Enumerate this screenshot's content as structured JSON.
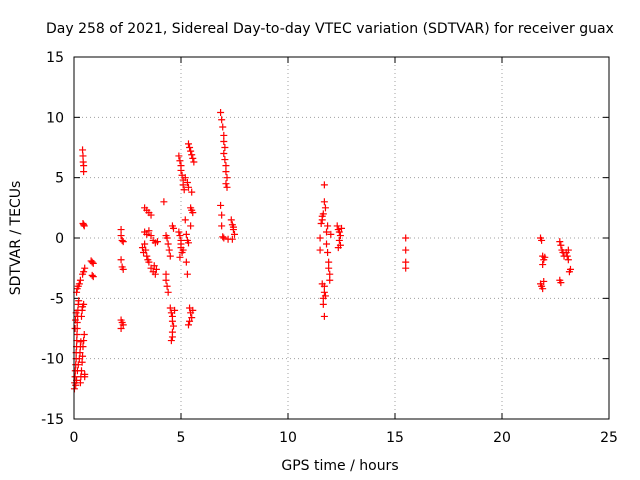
{
  "chart_data": {
    "type": "scatter",
    "title": "Day 258 of 2021, Sidereal Day-to-day VTEC variation (SDTVAR) for receiver guax",
    "xlabel": "GPS time / hours",
    "ylabel": "SDTVAR / TECUs",
    "xlim": [
      0,
      25
    ],
    "ylim": [
      -15,
      15
    ],
    "xticks": [
      0,
      5,
      10,
      15,
      20,
      25
    ],
    "yticks": [
      -15,
      -10,
      -5,
      0,
      5,
      10,
      15
    ],
    "xtick_labels": [
      "0",
      "5",
      "10",
      "15",
      "20",
      "25"
    ],
    "ytick_labels": [
      "-15",
      "-10",
      "-5",
      "0",
      "5",
      "10",
      "15"
    ],
    "grid": true,
    "marker": "+",
    "series": [
      {
        "name": "SDTVAR",
        "color": "#ff0000",
        "points": [
          [
            0.02,
            -12.5
          ],
          [
            0.03,
            -12.0
          ],
          [
            0.05,
            -11.5
          ],
          [
            0.06,
            -11.0
          ],
          [
            0.08,
            -10.5
          ],
          [
            0.1,
            -10.0
          ],
          [
            0.1,
            -9.5
          ],
          [
            0.12,
            -9.0
          ],
          [
            0.13,
            -8.5
          ],
          [
            0.14,
            -8.0
          ],
          [
            0.15,
            -7.5
          ],
          [
            0.15,
            -7.0
          ],
          [
            0.17,
            -6.5
          ],
          [
            0.18,
            -6.0
          ],
          [
            0.2,
            -5.5
          ],
          [
            0.22,
            -5.2
          ],
          [
            0.05,
            -7.5
          ],
          [
            0.07,
            -6.8
          ],
          [
            0.1,
            -6.2
          ],
          [
            0.12,
            -4.5
          ],
          [
            0.15,
            -4.2
          ],
          [
            0.2,
            -4.0
          ],
          [
            0.25,
            -3.8
          ],
          [
            0.3,
            -3.5
          ],
          [
            0.08,
            -12.2
          ],
          [
            0.12,
            -11.8
          ],
          [
            0.16,
            -11.0
          ],
          [
            0.2,
            -10.5
          ],
          [
            0.25,
            -10.0
          ],
          [
            0.28,
            -9.5
          ],
          [
            0.3,
            -9.0
          ],
          [
            0.32,
            -8.6
          ],
          [
            0.3,
            -12.0
          ],
          [
            0.32,
            -11.5
          ],
          [
            0.35,
            -11.0
          ],
          [
            0.38,
            -10.3
          ],
          [
            0.4,
            -9.8
          ],
          [
            0.42,
            -9.0
          ],
          [
            0.45,
            -8.5
          ],
          [
            0.48,
            -8.0
          ],
          [
            0.5,
            -11.5
          ],
          [
            0.5,
            -11.3
          ],
          [
            0.35,
            -6.5
          ],
          [
            0.38,
            -6.0
          ],
          [
            0.4,
            -5.7
          ],
          [
            0.45,
            -5.5
          ],
          [
            0.4,
            -3.0
          ],
          [
            0.45,
            -2.8
          ],
          [
            0.5,
            -2.5
          ],
          [
            0.4,
            7.3
          ],
          [
            0.42,
            6.8
          ],
          [
            0.43,
            6.3
          ],
          [
            0.45,
            6.0
          ],
          [
            0.45,
            5.5
          ],
          [
            0.42,
            1.2
          ],
          [
            0.45,
            1.1
          ],
          [
            0.48,
            1.0
          ],
          [
            0.8,
            -1.9
          ],
          [
            0.85,
            -2.0
          ],
          [
            0.9,
            -2.1
          ],
          [
            0.85,
            -3.1
          ],
          [
            0.9,
            -3.2
          ],
          [
            2.2,
            0.7
          ],
          [
            2.2,
            0.2
          ],
          [
            2.25,
            -0.2
          ],
          [
            2.3,
            -0.3
          ],
          [
            2.2,
            -1.8
          ],
          [
            2.25,
            -2.4
          ],
          [
            2.3,
            -2.6
          ],
          [
            2.2,
            -6.8
          ],
          [
            2.25,
            -7.0
          ],
          [
            2.3,
            -7.2
          ],
          [
            2.2,
            -7.5
          ],
          [
            3.3,
            2.5
          ],
          [
            3.4,
            2.3
          ],
          [
            3.5,
            2.1
          ],
          [
            3.6,
            1.9
          ],
          [
            3.3,
            0.5
          ],
          [
            3.4,
            0.3
          ],
          [
            3.5,
            0.6
          ],
          [
            3.6,
            0.2
          ],
          [
            3.3,
            -0.5
          ],
          [
            3.35,
            -1.0
          ],
          [
            3.4,
            -1.5
          ],
          [
            3.45,
            -1.8
          ],
          [
            3.5,
            -2.0
          ],
          [
            3.2,
            -0.8
          ],
          [
            3.25,
            -1.2
          ],
          [
            3.7,
            -0.2
          ],
          [
            3.8,
            -0.4
          ],
          [
            3.9,
            -0.3
          ],
          [
            3.6,
            -2.5
          ],
          [
            3.7,
            -2.8
          ],
          [
            3.8,
            -3.0
          ],
          [
            3.75,
            -2.3
          ],
          [
            3.85,
            -2.6
          ],
          [
            4.2,
            3.0
          ],
          [
            4.3,
            0.2
          ],
          [
            4.35,
            0.0
          ],
          [
            4.4,
            -0.5
          ],
          [
            4.45,
            -1.0
          ],
          [
            4.5,
            -1.5
          ],
          [
            4.3,
            -3.5
          ],
          [
            4.35,
            -4.0
          ],
          [
            4.4,
            -4.5
          ],
          [
            4.3,
            -3.0
          ],
          [
            4.5,
            -5.8
          ],
          [
            4.55,
            -6.2
          ],
          [
            4.6,
            -6.5
          ],
          [
            4.6,
            -6.9
          ],
          [
            4.65,
            -7.3
          ],
          [
            4.6,
            -7.8
          ],
          [
            4.6,
            -8.2
          ],
          [
            4.55,
            -8.5
          ],
          [
            4.7,
            -6.0
          ],
          [
            4.6,
            1.0
          ],
          [
            4.65,
            0.8
          ],
          [
            4.9,
            6.8
          ],
          [
            4.95,
            6.4
          ],
          [
            5.0,
            6.0
          ],
          [
            5.0,
            5.6
          ],
          [
            5.05,
            5.2
          ],
          [
            5.1,
            4.8
          ],
          [
            5.1,
            4.4
          ],
          [
            5.15,
            4.0
          ],
          [
            4.9,
            0.5
          ],
          [
            4.95,
            0.2
          ],
          [
            5.0,
            -0.2
          ],
          [
            5.0,
            -0.8
          ],
          [
            5.05,
            -1.2
          ],
          [
            4.95,
            -1.6
          ],
          [
            5.0,
            -0.5
          ],
          [
            5.1,
            -1.0
          ],
          [
            5.2,
            5.0
          ],
          [
            5.3,
            4.6
          ],
          [
            5.35,
            4.2
          ],
          [
            5.2,
            1.5
          ],
          [
            5.25,
            0.3
          ],
          [
            5.3,
            -0.2
          ],
          [
            5.35,
            -0.4
          ],
          [
            5.25,
            -2.0
          ],
          [
            5.3,
            -3.0
          ],
          [
            5.35,
            7.8
          ],
          [
            5.4,
            7.5
          ],
          [
            5.45,
            7.2
          ],
          [
            5.5,
            6.9
          ],
          [
            5.55,
            6.6
          ],
          [
            5.6,
            6.3
          ],
          [
            5.45,
            2.5
          ],
          [
            5.5,
            2.3
          ],
          [
            5.55,
            2.1
          ],
          [
            5.5,
            3.8
          ],
          [
            5.45,
            1.0
          ],
          [
            5.4,
            -5.8
          ],
          [
            5.45,
            -6.2
          ],
          [
            5.5,
            -6.6
          ],
          [
            5.4,
            -6.9
          ],
          [
            5.35,
            -7.2
          ],
          [
            5.55,
            -6.0
          ],
          [
            6.85,
            10.4
          ],
          [
            6.9,
            9.8
          ],
          [
            6.95,
            9.2
          ],
          [
            7.0,
            8.5
          ],
          [
            7.0,
            8.0
          ],
          [
            7.05,
            7.5
          ],
          [
            7.0,
            7.0
          ],
          [
            7.05,
            6.5
          ],
          [
            7.1,
            6.0
          ],
          [
            7.1,
            5.5
          ],
          [
            7.15,
            5.0
          ],
          [
            7.1,
            4.5
          ],
          [
            7.15,
            4.2
          ],
          [
            6.85,
            2.7
          ],
          [
            6.9,
            1.9
          ],
          [
            6.9,
            1.0
          ],
          [
            6.95,
            0.1
          ],
          [
            7.0,
            0.0
          ],
          [
            7.2,
            -0.1
          ],
          [
            7.35,
            1.5
          ],
          [
            7.4,
            1.1
          ],
          [
            7.45,
            0.7
          ],
          [
            7.5,
            0.3
          ],
          [
            7.4,
            -0.1
          ],
          [
            7.45,
            0.9
          ],
          [
            11.5,
            0.0
          ],
          [
            11.5,
            -1.0
          ],
          [
            11.55,
            1.2
          ],
          [
            11.6,
            1.8
          ],
          [
            11.65,
            2.0
          ],
          [
            11.6,
            1.5
          ],
          [
            11.7,
            4.4
          ],
          [
            11.7,
            3.0
          ],
          [
            11.75,
            2.5
          ],
          [
            11.8,
            -0.5
          ],
          [
            11.85,
            -1.2
          ],
          [
            11.9,
            -2.0
          ],
          [
            11.9,
            -2.5
          ],
          [
            11.95,
            -3.0
          ],
          [
            11.95,
            -3.5
          ],
          [
            11.7,
            -4.0
          ],
          [
            11.7,
            -4.5
          ],
          [
            11.65,
            -5.0
          ],
          [
            11.65,
            -5.5
          ],
          [
            11.7,
            -6.5
          ],
          [
            11.8,
            0.5
          ],
          [
            11.85,
            1.0
          ],
          [
            12.0,
            0.3
          ],
          [
            11.6,
            -3.8
          ],
          [
            11.75,
            -4.8
          ],
          [
            12.3,
            1.0
          ],
          [
            12.35,
            0.7
          ],
          [
            12.4,
            0.5
          ],
          [
            12.45,
            0.2
          ],
          [
            12.4,
            -0.2
          ],
          [
            12.45,
            -0.6
          ],
          [
            12.35,
            -0.8
          ],
          [
            12.5,
            0.8
          ],
          [
            15.5,
            0.0
          ],
          [
            15.5,
            -1.0
          ],
          [
            15.5,
            -2.0
          ],
          [
            15.5,
            -2.5
          ],
          [
            21.8,
            0.0
          ],
          [
            21.85,
            -0.2
          ],
          [
            21.9,
            -1.5
          ],
          [
            21.95,
            -1.8
          ],
          [
            21.9,
            -2.2
          ],
          [
            21.8,
            -3.8
          ],
          [
            21.85,
            -4.0
          ],
          [
            21.9,
            -4.2
          ],
          [
            21.95,
            -3.6
          ],
          [
            22.0,
            -1.6
          ],
          [
            22.7,
            -0.3
          ],
          [
            22.75,
            -0.6
          ],
          [
            22.8,
            -1.0
          ],
          [
            22.85,
            -1.2
          ],
          [
            22.7,
            -3.5
          ],
          [
            22.75,
            -3.7
          ],
          [
            22.9,
            -1.5
          ],
          [
            23.0,
            -1.2
          ],
          [
            23.05,
            -1.5
          ],
          [
            23.1,
            -1.8
          ],
          [
            23.15,
            -2.8
          ],
          [
            23.2,
            -2.6
          ],
          [
            23.1,
            -1.0
          ]
        ]
      }
    ]
  }
}
